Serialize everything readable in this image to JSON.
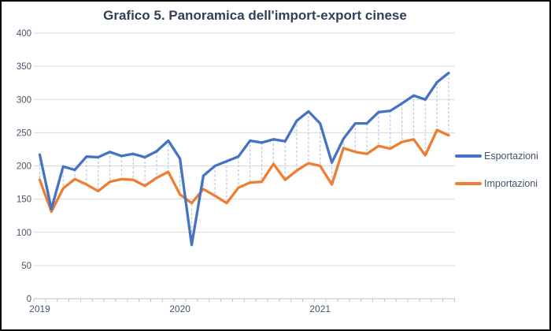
{
  "title": {
    "text": "Grafico 5. Panoramica dell'import-export cinese",
    "color": "#323F58"
  },
  "legend": {
    "text_color": "#44546A",
    "items": [
      {
        "label": "Esportazioni",
        "color": "#4472C4"
      },
      {
        "label": "Importazioni",
        "color": "#ED7D31"
      }
    ]
  },
  "axes": {
    "y_tick_values": [
      0,
      50,
      100,
      150,
      200,
      250,
      300,
      350,
      400
    ],
    "x_year_labels": [
      "2019",
      "2020",
      "2021"
    ],
    "label_color": "#44546A"
  },
  "styles": {
    "gridline_color": "#D9D9D9",
    "axis_line_color": "#BFBFBF",
    "tick_color": "#BFBFBF",
    "drop_line_color": "#B4C7E7",
    "background": "#ffffff",
    "border_color": "#000000"
  },
  "chart_data": {
    "type": "line",
    "title": "Grafico 5. Panoramica dell'import-export cinese",
    "xlabel": "",
    "ylabel": "",
    "ylim": [
      0,
      400
    ],
    "y_tick_step": 50,
    "grid": true,
    "legend_position": "right",
    "drop_lines_between_series": true,
    "categories": [
      "2019-01",
      "2019-02",
      "2019-03",
      "2019-04",
      "2019-05",
      "2019-06",
      "2019-07",
      "2019-08",
      "2019-09",
      "2019-10",
      "2019-11",
      "2019-12",
      "2020-01",
      "2020-02",
      "2020-03",
      "2020-04",
      "2020-05",
      "2020-06",
      "2020-07",
      "2020-08",
      "2020-09",
      "2020-10",
      "2020-11",
      "2020-12",
      "2021-01",
      "2021-02",
      "2021-03",
      "2021-04",
      "2021-05",
      "2021-06",
      "2021-07",
      "2021-08",
      "2021-09",
      "2021-10",
      "2021-11",
      "2021-12"
    ],
    "x_axis_year_marks": {
      "2019": 0,
      "2020": 12,
      "2021": 24
    },
    "series": [
      {
        "name": "Esportazioni",
        "color": "#4472C4",
        "values": [
          217,
          135,
          199,
          194,
          214,
          213,
          221,
          215,
          218,
          213,
          222,
          238,
          211,
          81,
          185,
          200,
          207,
          214,
          238,
          235,
          240,
          237,
          268,
          282,
          264,
          205,
          241,
          264,
          264,
          281,
          283,
          294,
          306,
          300,
          326,
          340
        ]
      },
      {
        "name": "Importazioni",
        "color": "#ED7D31",
        "values": [
          179,
          131,
          166,
          180,
          172,
          162,
          176,
          180,
          179,
          170,
          182,
          191,
          157,
          144,
          165,
          155,
          144,
          167,
          175,
          176,
          203,
          179,
          193,
          204,
          200,
          172,
          227,
          221,
          218,
          230,
          226,
          236,
          240,
          216,
          254,
          246
        ]
      }
    ]
  }
}
